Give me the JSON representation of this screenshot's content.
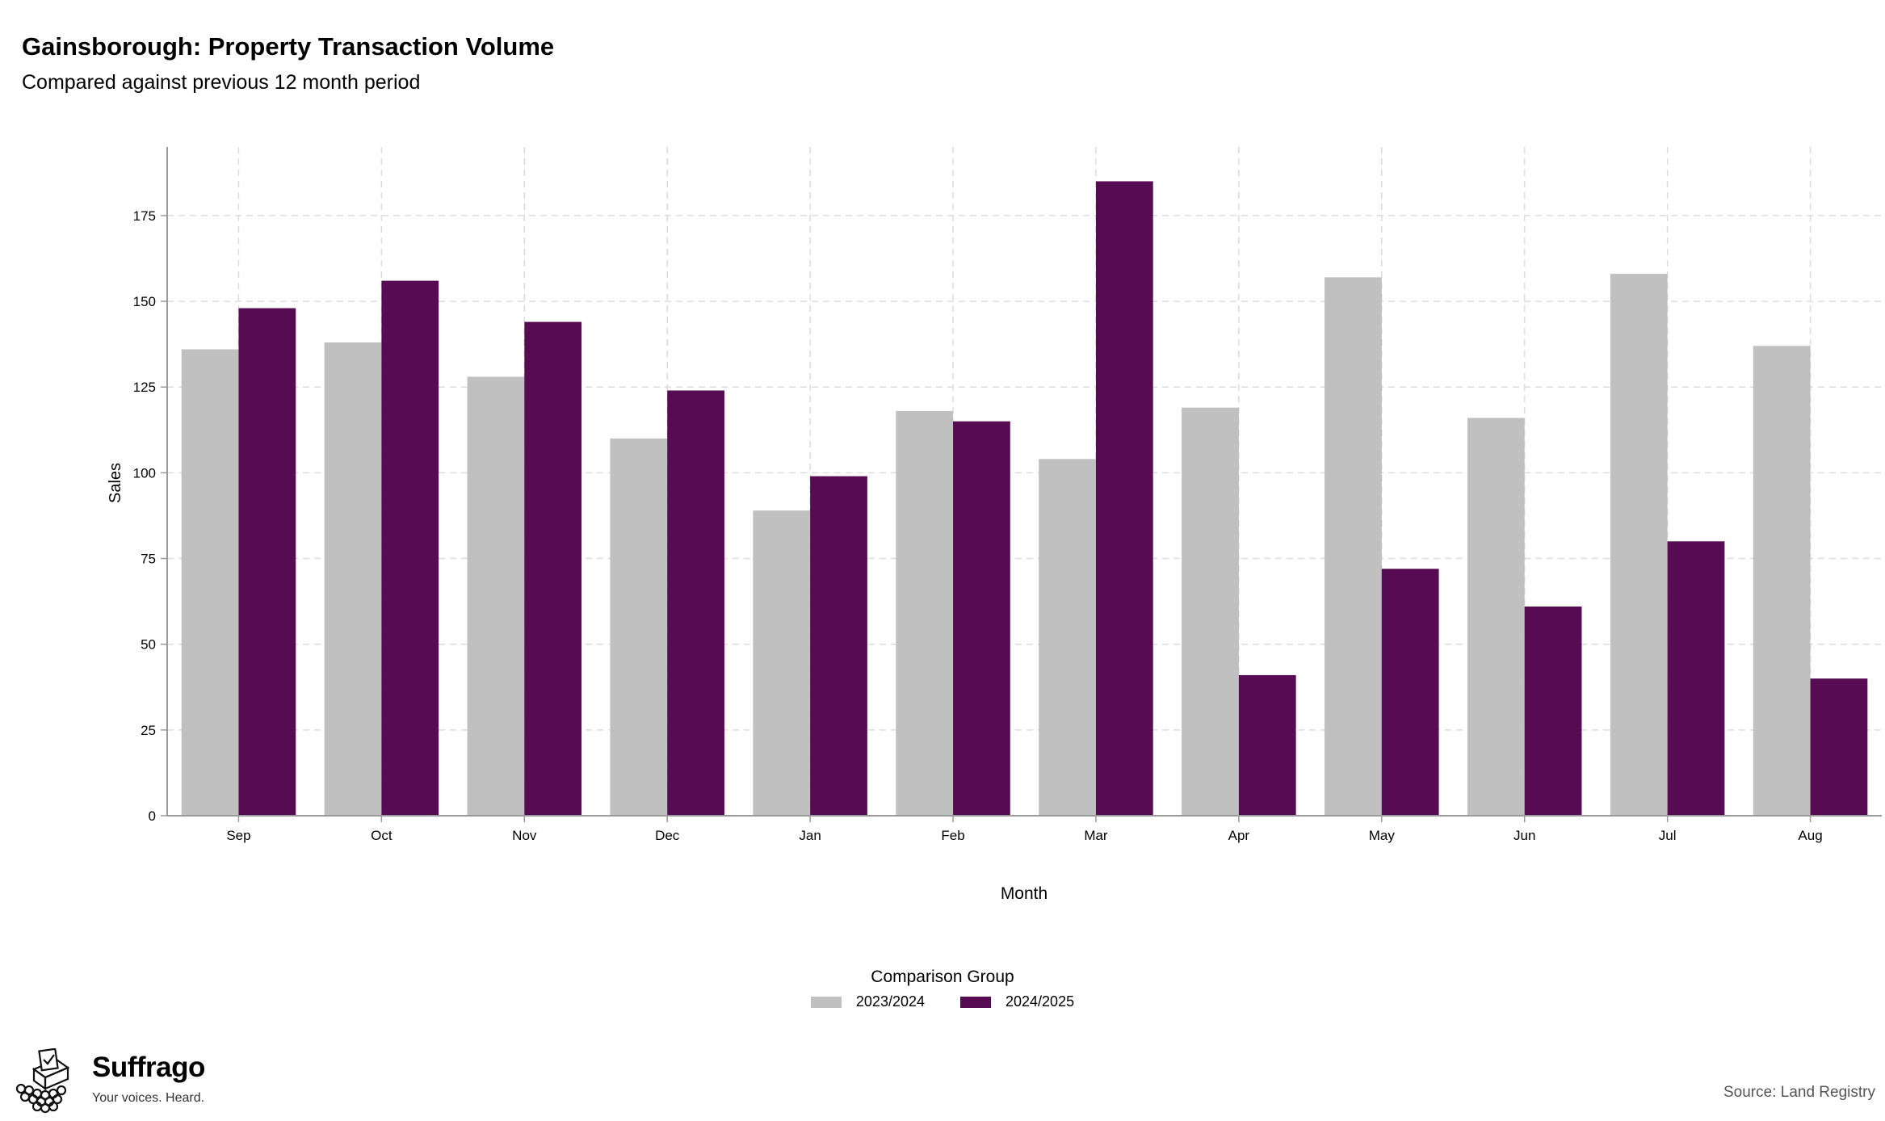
{
  "header": {
    "title": "Gainsborough: Property Transaction Volume",
    "subtitle": "Compared against previous 12 month period"
  },
  "colors": {
    "series_2023": "#c0c0c0",
    "series_2024": "#560b52",
    "grid": "#dcdcdc",
    "axis": "#9a9a9a"
  },
  "chart_data": {
    "type": "bar",
    "xlabel": "Month",
    "ylabel": "Sales",
    "ylim": [
      0,
      195
    ],
    "yticks": [
      0,
      25,
      50,
      75,
      100,
      125,
      150,
      175
    ],
    "grid": true,
    "legend_position": "bottom-center",
    "categories": [
      "Sep",
      "Oct",
      "Nov",
      "Dec",
      "Jan",
      "Feb",
      "Mar",
      "Apr",
      "May",
      "Jun",
      "Jul",
      "Aug"
    ],
    "series": [
      {
        "name": "2023/2024",
        "values": [
          136,
          138,
          128,
          110,
          89,
          118,
          104,
          119,
          157,
          116,
          158,
          137
        ]
      },
      {
        "name": "2024/2025",
        "values": [
          148,
          156,
          144,
          124,
          99,
          115,
          185,
          41,
          72,
          61,
          80,
          40
        ]
      }
    ]
  },
  "legend": {
    "title": "Comparison Group",
    "items": [
      "2023/2024",
      "2024/2025"
    ]
  },
  "brand": {
    "name": "Suffrago",
    "tagline": "Your voices. Heard.",
    "icon": "ballot-box-icon"
  },
  "footer": {
    "source": "Source: Land Registry"
  }
}
